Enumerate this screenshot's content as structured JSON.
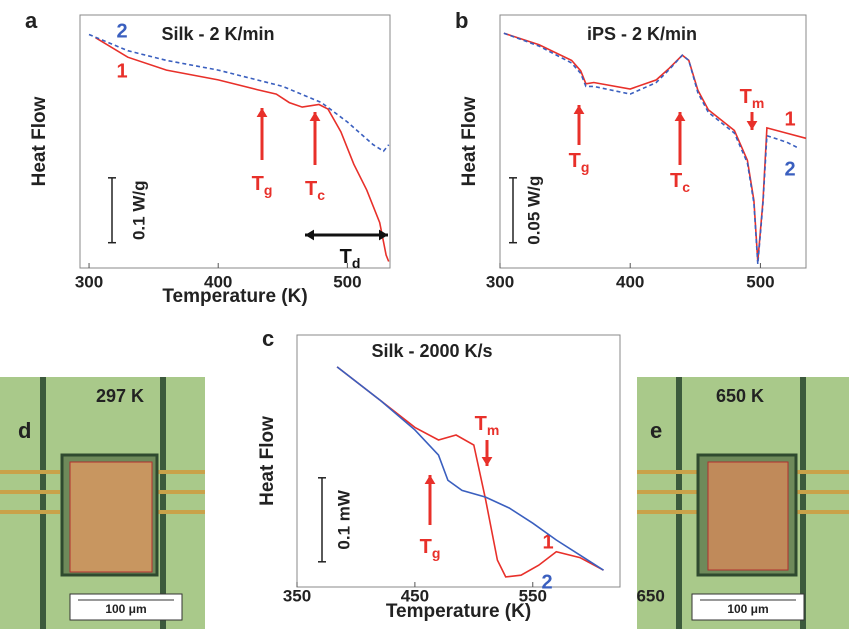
{
  "chart_data": [
    {
      "type": "line",
      "panel": "a",
      "title": "Silk - 2 K/min",
      "x_label": "Temperature (K)",
      "y_label": "Heat Flow",
      "xlim": [
        293,
        533
      ],
      "xticks": [
        300,
        400,
        500
      ],
      "ylim": [
        0,
        0.39
      ],
      "scale_bar": {
        "value": 0.1,
        "label": "0.1 W/g"
      },
      "series": [
        {
          "name": "1",
          "color": "#e8302a",
          "style": "solid",
          "x": [
            305,
            330,
            360,
            400,
            430,
            445,
            455,
            465,
            478,
            485,
            495,
            505,
            515,
            525,
            530,
            532
          ],
          "values": [
            0.355,
            0.325,
            0.305,
            0.29,
            0.275,
            0.268,
            0.255,
            0.248,
            0.252,
            0.245,
            0.21,
            0.16,
            0.12,
            0.07,
            0.02,
            0.01
          ]
        },
        {
          "name": "2",
          "color": "#3a5fbf",
          "style": "dashed",
          "x": [
            300,
            330,
            360,
            400,
            450,
            480,
            500,
            520,
            528,
            532
          ],
          "values": [
            0.36,
            0.335,
            0.32,
            0.305,
            0.28,
            0.255,
            0.225,
            0.19,
            0.18,
            0.19
          ]
        }
      ],
      "annotations": [
        {
          "main": "T",
          "sub": "g"
        },
        {
          "main": "T",
          "sub": "c"
        },
        {
          "main": "T",
          "sub": "d"
        }
      ]
    },
    {
      "type": "line",
      "panel": "b",
      "title": "iPS - 2 K/min",
      "x_label": "Temperature (K)",
      "y_label": "Heat Flow",
      "xlim": [
        300,
        535
      ],
      "xticks": [
        300,
        400,
        500
      ],
      "ylim": [
        0,
        0.195
      ],
      "scale_bar": {
        "value": 0.05,
        "label": "0.05 W/g"
      },
      "series": [
        {
          "name": "1",
          "color": "#e8302a",
          "style": "solid",
          "x": [
            303,
            330,
            355,
            362,
            366,
            372,
            400,
            420,
            430,
            440,
            445,
            452,
            460,
            480,
            490,
            495,
            498,
            502,
            505,
            520,
            535
          ],
          "values": [
            0.181,
            0.172,
            0.16,
            0.152,
            0.142,
            0.143,
            0.138,
            0.145,
            0.154,
            0.164,
            0.16,
            0.137,
            0.122,
            0.106,
            0.083,
            0.052,
            0.005,
            0.052,
            0.108,
            0.104,
            0.1
          ]
        },
        {
          "name": "2",
          "color": "#3a5fbf",
          "style": "dashed",
          "x": [
            303,
            330,
            355,
            362,
            366,
            372,
            400,
            420,
            430,
            440,
            445,
            452,
            460,
            480,
            490,
            495,
            498,
            502,
            505,
            520,
            530
          ],
          "values": [
            0.181,
            0.171,
            0.158,
            0.15,
            0.14,
            0.14,
            0.134,
            0.143,
            0.153,
            0.164,
            0.16,
            0.135,
            0.12,
            0.104,
            0.081,
            0.05,
            0.003,
            0.05,
            0.102,
            0.097,
            0.092
          ]
        }
      ],
      "annotations": [
        {
          "main": "T",
          "sub": "g"
        },
        {
          "main": "T",
          "sub": "c"
        },
        {
          "main": "T",
          "sub": "m"
        }
      ]
    },
    {
      "type": "line",
      "panel": "c",
      "title": "Silk - 2000 K/s",
      "x_label": "Temperature (K)",
      "y_label": "Heat Flow",
      "xlim": [
        350,
        624
      ],
      "xticks": [
        350,
        450,
        550,
        650
      ],
      "ylim": [
        0,
        0.3
      ],
      "scale_bar": {
        "value": 0.1,
        "label": "0.1 mW"
      },
      "series": [
        {
          "name": "1",
          "color": "#e8302a",
          "style": "solid",
          "x": [
            384,
            420,
            450,
            470,
            485,
            500,
            510,
            520,
            527,
            540,
            555,
            570,
            590,
            610
          ],
          "values": [
            0.262,
            0.223,
            0.19,
            0.175,
            0.181,
            0.169,
            0.104,
            0.032,
            0.012,
            0.014,
            0.026,
            0.042,
            0.035,
            0.02
          ]
        },
        {
          "name": "2",
          "color": "#3a5fbf",
          "style": "solid",
          "x": [
            384,
            420,
            450,
            470,
            478,
            490,
            510,
            530,
            550,
            570,
            590,
            610
          ],
          "values": [
            0.262,
            0.223,
            0.187,
            0.157,
            0.127,
            0.115,
            0.107,
            0.094,
            0.076,
            0.056,
            0.038,
            0.02
          ]
        }
      ],
      "annotations": [
        {
          "main": "T",
          "sub": "m"
        },
        {
          "main": "T",
          "sub": "g"
        }
      ]
    }
  ],
  "images": [
    {
      "panel": "d",
      "temperature": "297 K",
      "scale": "100 μm"
    },
    {
      "panel": "e",
      "temperature": "650 K",
      "scale": "100 μm"
    }
  ]
}
